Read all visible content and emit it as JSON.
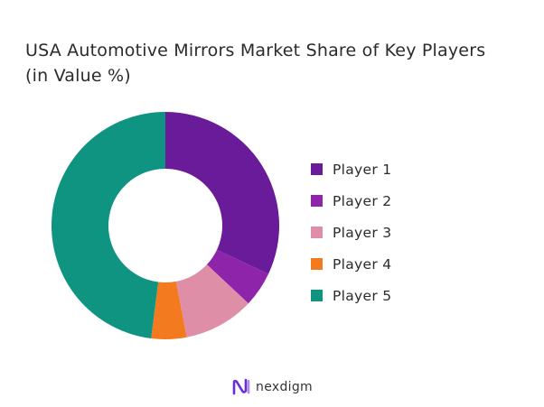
{
  "header": {
    "title_line1": "USA Automotive Mirrors Market Share of Key Players",
    "title_line2": "(in Value %)"
  },
  "brand": {
    "name": "nexdigm",
    "logo_icon": "nexdigm-logo-icon",
    "logo_color": "#6c2bd9"
  },
  "chart_data": {
    "type": "pie",
    "variant": "donut",
    "title": "USA Automotive Mirrors Market Share of Key Players (in Value %)",
    "categories": [
      "Player 1",
      "Player 2",
      "Player 3",
      "Player 4",
      "Player 5"
    ],
    "values": [
      32,
      5,
      10,
      5,
      48
    ],
    "colors": [
      "#6a1b9a",
      "#8e24aa",
      "#de8fa7",
      "#f47a20",
      "#0e9481"
    ],
    "legend_position": "right"
  }
}
